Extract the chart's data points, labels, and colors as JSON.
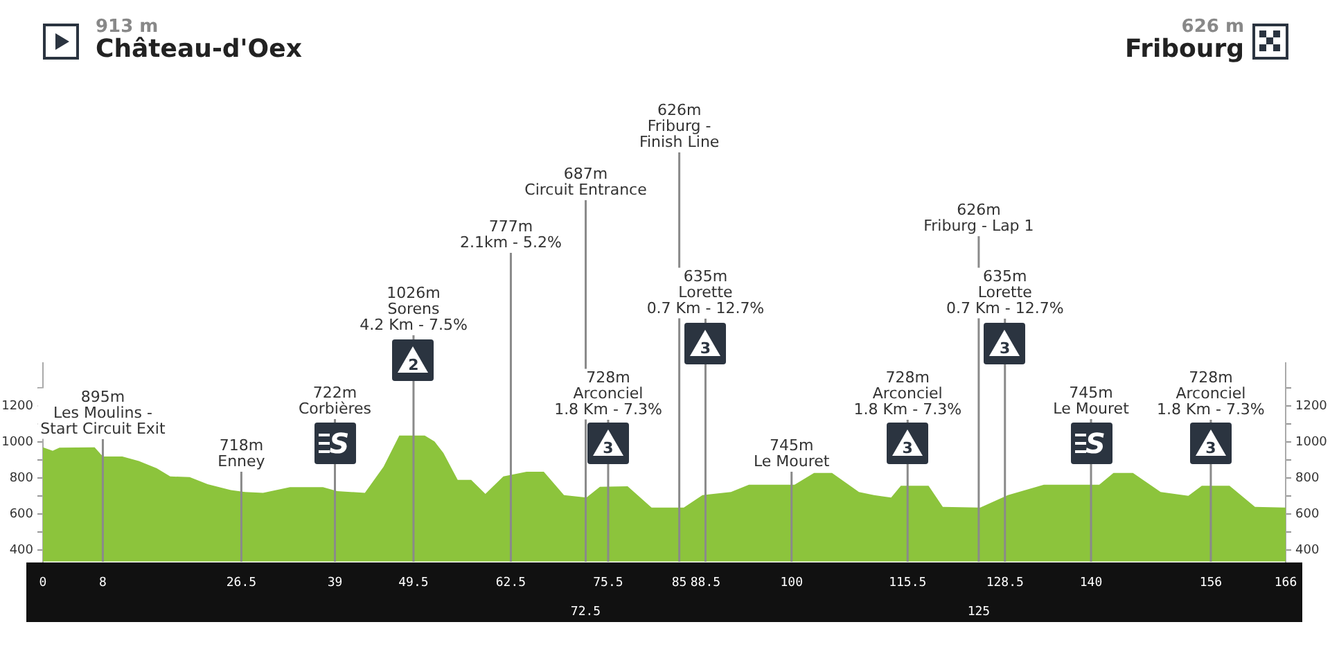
{
  "chart_data": {
    "type": "area",
    "x": [
      0,
      1.3,
      2.2,
      6.9,
      8,
      10.6,
      12.8,
      15.2,
      17,
      19.6,
      22,
      25.1,
      27,
      29.4,
      33,
      37.4,
      39.3,
      43,
      45.5,
      47.6,
      51,
      52.3,
      53.5,
      55.4,
      57.2,
      59.1,
      61.5,
      64.6,
      66.9,
      69.6,
      72.6,
      74.4,
      78.1,
      81.3,
      85.6,
      88.1,
      91.9,
      94.3,
      100.4,
      103,
      105.4,
      109,
      111,
      113.3,
      114.6,
      118.3,
      120.2,
      125.2,
      128.9,
      133.7,
      137.4,
      141.1,
      143,
      145.6,
      149.3,
      153,
      154.8,
      158.5,
      161.9,
      166
    ],
    "series": [
      {
        "color": "#8cc43c",
        "values": [
          971,
          952,
          969,
          971,
          920,
          920,
          895,
          854,
          809,
          805,
          766,
          733,
          722,
          718,
          749,
          749,
          727,
          718,
          863,
          1036,
          1036,
          1004,
          939,
          790,
          790,
          712,
          809,
          835,
          835,
          705,
          692,
          751,
          754,
          636,
          636,
          705,
          722,
          763,
          763,
          828,
          828,
          722,
          705,
          692,
          757,
          757,
          640,
          636,
          705,
          763,
          763,
          763,
          828,
          828,
          722,
          701,
          757,
          757,
          640,
          636
        ]
      }
    ],
    "xlim": [
      0,
      166
    ],
    "xticks": [
      0,
      8,
      26.5,
      39,
      49.5,
      62.5,
      75.5,
      85,
      88.5,
      100,
      115.5,
      128.5,
      140,
      156,
      166
    ],
    "x2lim": [
      0,
      166
    ],
    "x2ticks": [
      72.5,
      125
    ],
    "ylim": [
      335,
      1440
    ],
    "yticks": [
      400,
      {
        "value": 500,
        "label": null
      },
      600,
      {
        "value": 700,
        "label": null
      },
      800,
      {
        "value": 900,
        "label": null
      },
      1000,
      {
        "value": 1100,
        "label": null
      },
      1200,
      {
        "value": 1300,
        "label": null
      }
    ],
    "y2lim": [
      335,
      1440
    ],
    "y2ticks": [
      400,
      {
        "value": 500,
        "label": null
      },
      600,
      {
        "value": 700,
        "label": null
      },
      800,
      {
        "value": 900,
        "label": null
      },
      1000,
      {
        "value": 1100,
        "label": null
      },
      1200,
      {
        "value": 1300,
        "label": null
      }
    ],
    "grid": false,
    "legend": false,
    "annotations": [
      "913 m",
      "Château-d'Oex",
      "626 m",
      "Fribourg",
      "S",
      "2",
      "3",
      "3",
      "3",
      "3",
      "S",
      "3"
    ],
    "ref_lines": [
      {
        "axis": "x",
        "value": 8,
        "label": "895m\nLes Moulins -\nStart Circuit Exit",
        "color": "#8a8a8a"
      },
      {
        "axis": "x",
        "value": 26.5,
        "label": "718m\nEnney",
        "color": "#8a8a8a"
      },
      {
        "axis": "x",
        "value": 39,
        "label": "722m\nCorbières",
        "color": "#8a8a8a"
      },
      {
        "axis": "x",
        "value": 49.5,
        "label": "1026m\nSorens\n4.2 Km - 7.5%",
        "color": "#8a8a8a"
      },
      {
        "axis": "x",
        "value": 62.5,
        "label": "777m\n2.1km - 5.2%",
        "color": "#8a8a8a"
      },
      {
        "axis": "x",
        "value": 72.5,
        "label": "687m\nCircuit Entrance",
        "color": "#8a8a8a"
      },
      {
        "axis": "x",
        "value": 75.5,
        "label": "728m\nArconciel\n1.8 Km - 7.3%",
        "color": "#8a8a8a"
      },
      {
        "axis": "x",
        "value": 85,
        "label": "626m\nFriburg -\nFinish Line",
        "color": "#8a8a8a"
      },
      {
        "axis": "x",
        "value": 88.5,
        "label": "635m\nLorette\n0.7 Km - 12.7%",
        "color": "#8a8a8a"
      },
      {
        "axis": "x",
        "value": 100,
        "label": "745m\nLe Mouret",
        "color": "#8a8a8a"
      },
      {
        "axis": "x",
        "value": 115.5,
        "label": "728m\nArconciel\n1.8 Km - 7.3%",
        "color": "#8a8a8a"
      },
      {
        "axis": "x",
        "value": 125,
        "label": "626m\nFriburg - Lap 1",
        "color": "#8a8a8a"
      },
      {
        "axis": "x",
        "value": 128.5,
        "label": "635m\nLorette\n0.7 Km - 12.7%",
        "color": "#8a8a8a"
      },
      {
        "axis": "x",
        "value": 140,
        "label": "745m\nLe Mouret",
        "color": "#8a8a8a"
      },
      {
        "axis": "x",
        "value": 156,
        "label": "728m\nArconciel\n1.8 Km - 7.3%",
        "color": "#8a8a8a"
      }
    ]
  }
}
